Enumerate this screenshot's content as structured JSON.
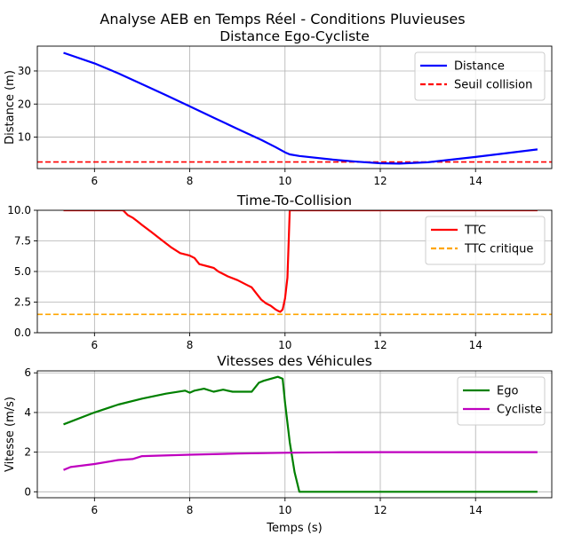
{
  "suptitle": "Analyse AEB en Temps Réel - Conditions Pluvieuses",
  "chart_data": [
    {
      "type": "line",
      "title": "Distance Ego-Cycliste",
      "xlabel": "",
      "ylabel": "Distance (m)",
      "xlim": [
        4.8,
        15.6
      ],
      "ylim": [
        0.5,
        37.5
      ],
      "xticks": [
        6,
        8,
        10,
        12,
        14
      ],
      "yticks": [
        10,
        20,
        30
      ],
      "yticklabels": [
        "10",
        "20",
        "30"
      ],
      "grid": true,
      "legend": "top-right",
      "hlines": [
        {
          "name": "Seuil collision",
          "y": 2.5,
          "color": "#ff0000",
          "dash": true
        }
      ],
      "series": [
        {
          "name": "Distance",
          "color": "#0000ff",
          "x": [
            5.35,
            6,
            6.5,
            7,
            7.5,
            8,
            8.5,
            9,
            9.5,
            9.8,
            10,
            10.1,
            10.3,
            11,
            11.5,
            12,
            12.4,
            13,
            13.5,
            14,
            14.5,
            15.3
          ],
          "y": [
            35.5,
            32.3,
            29.3,
            26,
            22.7,
            19.3,
            15.9,
            12.5,
            9.2,
            7,
            5.4,
            4.8,
            4.3,
            3.2,
            2.6,
            2.1,
            2.0,
            2.4,
            3.2,
            4.0,
            4.9,
            6.3
          ]
        }
      ]
    },
    {
      "type": "line",
      "title": "Time-To-Collision",
      "xlabel": "",
      "ylabel": "",
      "xlim": [
        4.8,
        15.6
      ],
      "ylim": [
        0,
        10
      ],
      "xticks": [
        6,
        8,
        10,
        12,
        14
      ],
      "yticks": [
        0,
        2.5,
        5,
        7.5,
        10
      ],
      "yticklabels": [
        "0.0",
        "2.5",
        "5.0",
        "7.5",
        "10.0"
      ],
      "grid": true,
      "legend": "top-right",
      "hlines": [
        {
          "name": "TTC critique",
          "y": 1.5,
          "color": "#ffa500",
          "dash": true
        }
      ],
      "series": [
        {
          "name": "TTC",
          "color": "#ff0000",
          "x": [
            5.35,
            6.6,
            6.7,
            6.8,
            6.9,
            7.0,
            7.2,
            7.4,
            7.6,
            7.8,
            8.0,
            8.1,
            8.2,
            8.4,
            8.5,
            8.6,
            8.8,
            9.0,
            9.2,
            9.3,
            9.4,
            9.5,
            9.6,
            9.7,
            9.8,
            9.85,
            9.9,
            9.95,
            10.0,
            10.05,
            10.1,
            10.2,
            12.0,
            15.3
          ],
          "y": [
            10,
            10,
            9.6,
            9.4,
            9.1,
            8.8,
            8.2,
            7.6,
            7.0,
            6.5,
            6.3,
            6.1,
            5.6,
            5.4,
            5.3,
            5.0,
            4.6,
            4.3,
            3.9,
            3.7,
            3.2,
            2.7,
            2.4,
            2.2,
            1.9,
            1.8,
            1.7,
            1.9,
            2.8,
            4.5,
            10,
            10,
            10,
            10
          ]
        }
      ]
    },
    {
      "type": "line",
      "title": "Vitesses des Véhicules",
      "xlabel": "Temps (s)",
      "ylabel": "Vitesse (m/s)",
      "xlim": [
        4.8,
        15.6
      ],
      "ylim": [
        -0.3,
        6.1
      ],
      "xticks": [
        6,
        8,
        10,
        12,
        14
      ],
      "yticks": [
        0,
        2,
        4,
        6
      ],
      "yticklabels": [
        "0",
        "2",
        "4",
        "6"
      ],
      "grid": true,
      "legend": "top-right",
      "hlines": [],
      "series": [
        {
          "name": "Ego",
          "color": "#008000",
          "x": [
            5.35,
            6,
            6.5,
            7,
            7.5,
            7.9,
            8.0,
            8.1,
            8.3,
            8.5,
            8.7,
            8.9,
            9.1,
            9.3,
            9.45,
            9.55,
            9.7,
            9.85,
            9.95,
            10.0,
            10.1,
            10.2,
            10.25,
            10.3,
            12,
            15.3
          ],
          "y": [
            3.4,
            4.0,
            4.4,
            4.7,
            4.95,
            5.1,
            5.0,
            5.1,
            5.2,
            5.05,
            5.15,
            5.05,
            5.05,
            5.05,
            5.5,
            5.6,
            5.7,
            5.8,
            5.7,
            4.5,
            2.5,
            1.0,
            0.5,
            0.0,
            0.0,
            0.0
          ]
        },
        {
          "name": "Cycliste",
          "color": "#bf00bf",
          "x": [
            5.35,
            5.5,
            6,
            6.5,
            6.8,
            7,
            8,
            9,
            10,
            11,
            12,
            13,
            14,
            15.3
          ],
          "y": [
            1.1,
            1.25,
            1.4,
            1.6,
            1.65,
            1.8,
            1.87,
            1.93,
            1.97,
            1.99,
            2.0,
            2.0,
            2.0,
            2.0
          ]
        }
      ]
    }
  ]
}
